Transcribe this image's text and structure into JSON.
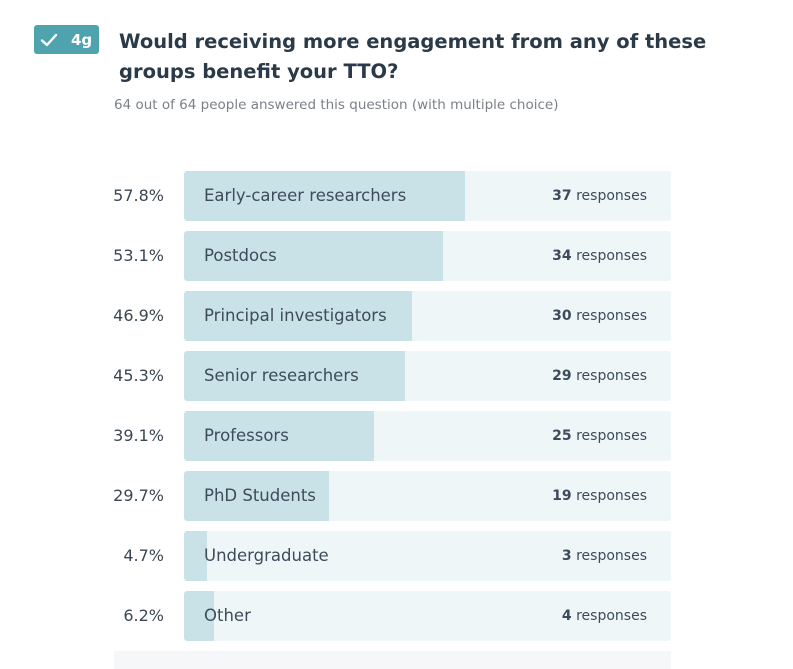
{
  "badge": {
    "icon": "check-icon",
    "label": "4g",
    "color": "#4fa3af"
  },
  "question": {
    "title": "Would receiving more engagement from any of these groups benefit your TTO?",
    "meta": "64 out of 64 people answered this question (with multiple choice)"
  },
  "response_word": "responses",
  "colors": {
    "fill": "#c8e2e8",
    "track": "#eef6f8"
  },
  "chart_data": {
    "type": "bar",
    "orientation": "horizontal",
    "categories": [
      "Early-career researchers",
      "Postdocs",
      "Principal investigators",
      "Senior researchers",
      "Professors",
      "PhD Students",
      "Undergraduate",
      "Other"
    ],
    "percents": [
      "57.8%",
      "53.1%",
      "46.9%",
      "45.3%",
      "39.1%",
      "29.7%",
      "4.7%",
      "6.2%"
    ],
    "values": [
      57.8,
      53.1,
      46.9,
      45.3,
      39.1,
      29.7,
      4.7,
      6.2
    ],
    "counts": [
      37,
      34,
      30,
      29,
      25,
      19,
      3,
      4
    ],
    "xlim": [
      0,
      100
    ]
  }
}
